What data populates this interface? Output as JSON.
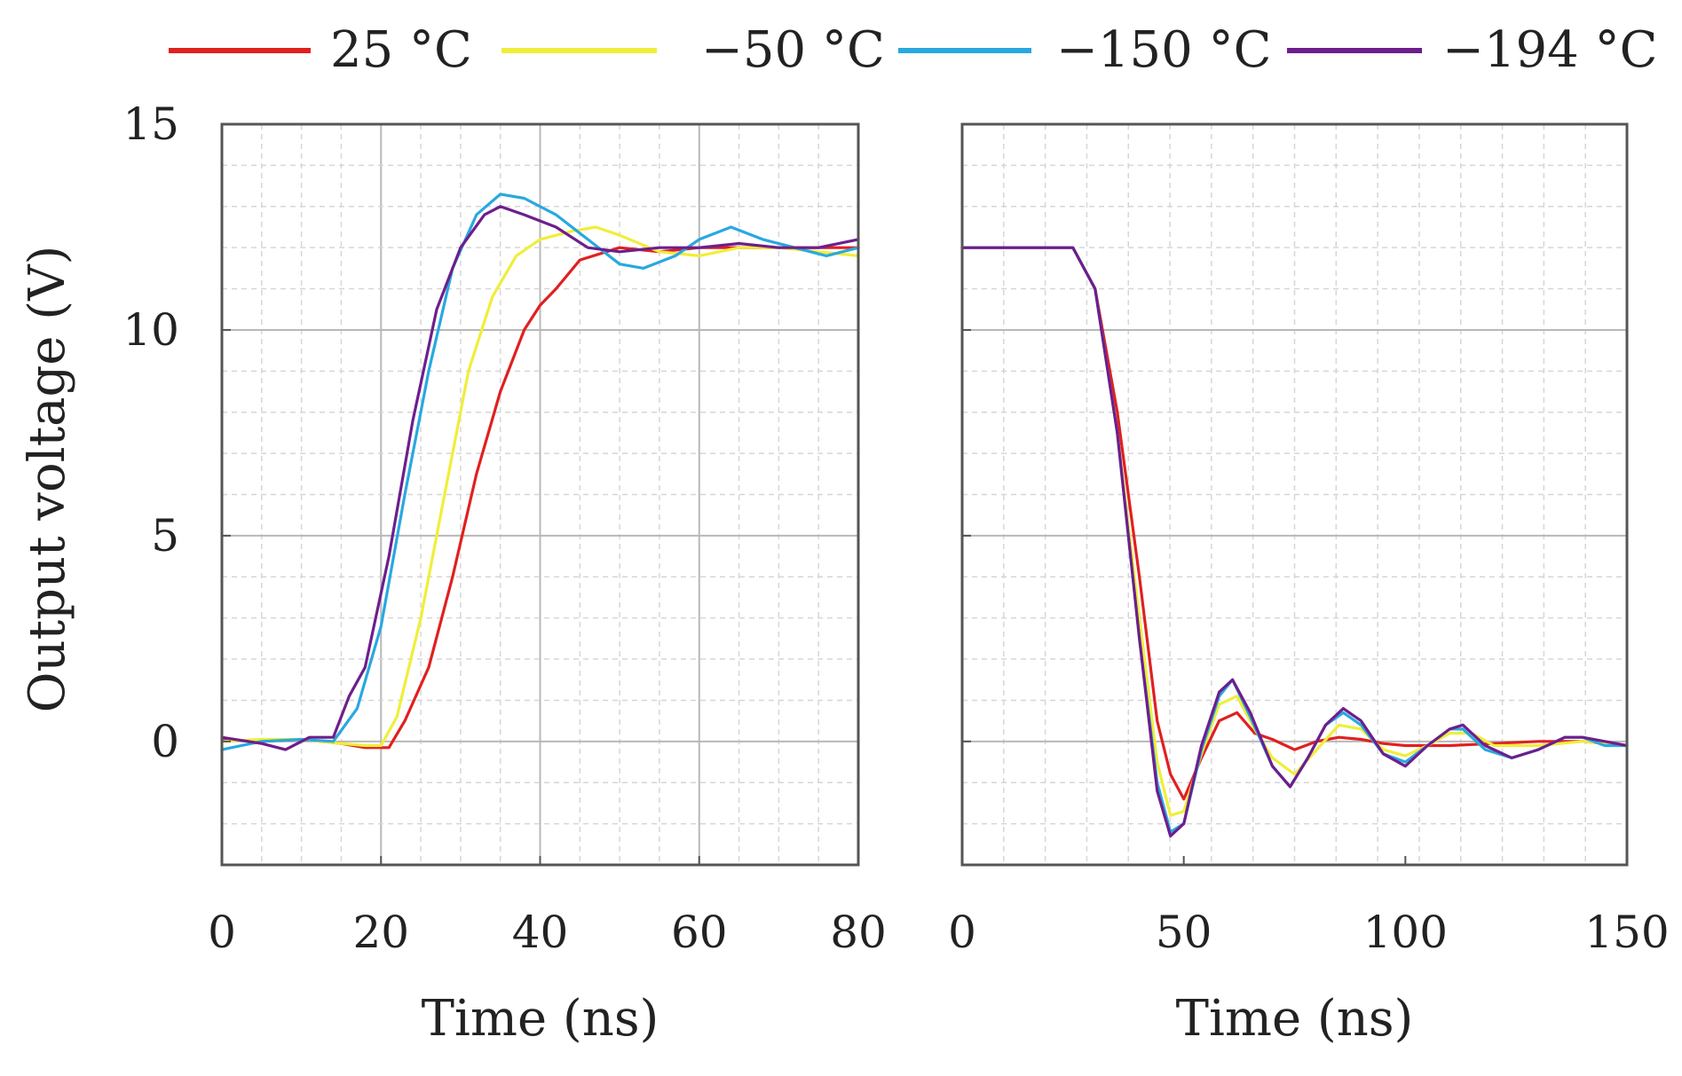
{
  "legend": [
    {
      "label": "25 °C",
      "color": "#e0201f"
    },
    {
      "label": "−50 °C",
      "color": "#f0ee3a"
    },
    {
      "label": "−150 °C",
      "color": "#29a8e0"
    },
    {
      "label": "−194 °C",
      "color": "#6d1e8c"
    }
  ],
  "ylabel": "Output voltage (V)",
  "chart_data": [
    {
      "type": "line",
      "title": "",
      "xlabel": "Time (ns)",
      "ylabel": "Output voltage (V)",
      "xlim": [
        0,
        80
      ],
      "ylim": [
        -3,
        15
      ],
      "xticks": [
        0,
        20,
        40,
        60,
        80
      ],
      "yticks": [
        0,
        5,
        10,
        15
      ],
      "grid": true,
      "series": [
        {
          "name": "25 °C",
          "color": "#e0201f",
          "points": [
            [
              0,
              0.05
            ],
            [
              5,
              0
            ],
            [
              10,
              0.05
            ],
            [
              15,
              -0.05
            ],
            [
              18,
              -0.15
            ],
            [
              21,
              -0.15
            ],
            [
              23,
              0.5
            ],
            [
              26,
              1.8
            ],
            [
              29,
              4
            ],
            [
              32,
              6.5
            ],
            [
              35,
              8.5
            ],
            [
              38,
              10
            ],
            [
              40,
              10.6
            ],
            [
              42,
              11
            ],
            [
              45,
              11.7
            ],
            [
              50,
              12
            ],
            [
              55,
              11.9
            ],
            [
              60,
              12
            ],
            [
              65,
              12
            ],
            [
              70,
              12
            ],
            [
              75,
              12
            ],
            [
              80,
              12
            ]
          ]
        },
        {
          "name": "−50 °C",
          "color": "#f0ee3a",
          "points": [
            [
              0,
              0
            ],
            [
              5,
              0.05
            ],
            [
              10,
              0.05
            ],
            [
              15,
              -0.05
            ],
            [
              18,
              -0.1
            ],
            [
              20,
              -0.1
            ],
            [
              22,
              0.6
            ],
            [
              25,
              3
            ],
            [
              28,
              6
            ],
            [
              31,
              9
            ],
            [
              34,
              10.8
            ],
            [
              37,
              11.8
            ],
            [
              40,
              12.2
            ],
            [
              44,
              12.4
            ],
            [
              47,
              12.5
            ],
            [
              50,
              12.3
            ],
            [
              55,
              11.9
            ],
            [
              60,
              11.8
            ],
            [
              65,
              12
            ],
            [
              70,
              12
            ],
            [
              75,
              11.9
            ],
            [
              80,
              11.8
            ]
          ]
        },
        {
          "name": "−150 °C",
          "color": "#29a8e0",
          "points": [
            [
              0,
              -0.2
            ],
            [
              5,
              0
            ],
            [
              10,
              0.05
            ],
            [
              14,
              0
            ],
            [
              17,
              0.8
            ],
            [
              20,
              2.8
            ],
            [
              23,
              6
            ],
            [
              26,
              9
            ],
            [
              29,
              11.5
            ],
            [
              32,
              12.8
            ],
            [
              35,
              13.3
            ],
            [
              38,
              13.2
            ],
            [
              42,
              12.8
            ],
            [
              46,
              12.2
            ],
            [
              50,
              11.6
            ],
            [
              53,
              11.5
            ],
            [
              57,
              11.8
            ],
            [
              60,
              12.2
            ],
            [
              64,
              12.5
            ],
            [
              68,
              12.2
            ],
            [
              72,
              12
            ],
            [
              76,
              11.8
            ],
            [
              80,
              12
            ]
          ]
        },
        {
          "name": "−194 °C",
          "color": "#6d1e8c",
          "points": [
            [
              0,
              0.1
            ],
            [
              5,
              -0.05
            ],
            [
              8,
              -0.2
            ],
            [
              11,
              0.1
            ],
            [
              14,
              0.1
            ],
            [
              16,
              1.1
            ],
            [
              18,
              1.8
            ],
            [
              21,
              4.5
            ],
            [
              24,
              7.8
            ],
            [
              27,
              10.5
            ],
            [
              30,
              12
            ],
            [
              33,
              12.8
            ],
            [
              35,
              13
            ],
            [
              38,
              12.8
            ],
            [
              42,
              12.5
            ],
            [
              46,
              12
            ],
            [
              50,
              11.9
            ],
            [
              55,
              12
            ],
            [
              60,
              12
            ],
            [
              65,
              12.1
            ],
            [
              70,
              12
            ],
            [
              75,
              12
            ],
            [
              80,
              12.2
            ]
          ]
        }
      ]
    },
    {
      "type": "line",
      "title": "",
      "xlabel": "Time (ns)",
      "ylabel": "",
      "xlim": [
        0,
        150
      ],
      "ylim": [
        -3,
        15
      ],
      "xticks": [
        0,
        50,
        100,
        150
      ],
      "yticks": [
        0,
        5,
        10,
        15
      ],
      "grid": true,
      "series": [
        {
          "name": "25 °C",
          "color": "#e0201f",
          "points": [
            [
              0,
              12
            ],
            [
              10,
              12
            ],
            [
              20,
              12
            ],
            [
              25,
              12
            ],
            [
              30,
              11
            ],
            [
              35,
              8
            ],
            [
              40,
              4
            ],
            [
              44,
              0.5
            ],
            [
              47,
              -0.8
            ],
            [
              50,
              -1.4
            ],
            [
              54,
              -0.4
            ],
            [
              58,
              0.5
            ],
            [
              62,
              0.7
            ],
            [
              66,
              0.2
            ],
            [
              70,
              0.05
            ],
            [
              75,
              -0.2
            ],
            [
              80,
              0
            ],
            [
              85,
              0.1
            ],
            [
              90,
              0.05
            ],
            [
              95,
              -0.05
            ],
            [
              100,
              -0.1
            ],
            [
              110,
              -0.1
            ],
            [
              120,
              -0.05
            ],
            [
              130,
              0
            ],
            [
              140,
              0
            ],
            [
              150,
              -0.1
            ]
          ]
        },
        {
          "name": "−50 °C",
          "color": "#f0ee3a",
          "points": [
            [
              0,
              12
            ],
            [
              10,
              12
            ],
            [
              20,
              12
            ],
            [
              25,
              12
            ],
            [
              30,
              11
            ],
            [
              35,
              7.5
            ],
            [
              40,
              3
            ],
            [
              44,
              -0.5
            ],
            [
              47,
              -1.8
            ],
            [
              50,
              -1.7
            ],
            [
              54,
              -0.3
            ],
            [
              58,
              0.9
            ],
            [
              62,
              1.1
            ],
            [
              66,
              0.3
            ],
            [
              70,
              -0.4
            ],
            [
              75,
              -0.8
            ],
            [
              80,
              -0.2
            ],
            [
              85,
              0.4
            ],
            [
              90,
              0.3
            ],
            [
              95,
              -0.2
            ],
            [
              100,
              -0.35
            ],
            [
              105,
              -0.1
            ],
            [
              110,
              0.2
            ],
            [
              115,
              0.2
            ],
            [
              120,
              -0.1
            ],
            [
              130,
              -0.1
            ],
            [
              140,
              0
            ],
            [
              150,
              -0.1
            ]
          ]
        },
        {
          "name": "−150 °C",
          "color": "#29a8e0",
          "points": [
            [
              0,
              12
            ],
            [
              10,
              12
            ],
            [
              20,
              12
            ],
            [
              25,
              12
            ],
            [
              30,
              11
            ],
            [
              35,
              7.5
            ],
            [
              40,
              2.5
            ],
            [
              44,
              -1
            ],
            [
              47,
              -2.2
            ],
            [
              50,
              -2
            ],
            [
              54,
              -0.2
            ],
            [
              58,
              1.1
            ],
            [
              61,
              1.5
            ],
            [
              65,
              0.6
            ],
            [
              70,
              -0.6
            ],
            [
              74,
              -1.1
            ],
            [
              78,
              -0.4
            ],
            [
              82,
              0.4
            ],
            [
              86,
              0.7
            ],
            [
              90,
              0.4
            ],
            [
              95,
              -0.3
            ],
            [
              100,
              -0.5
            ],
            [
              105,
              -0.1
            ],
            [
              110,
              0.3
            ],
            [
              113,
              0.3
            ],
            [
              118,
              -0.2
            ],
            [
              124,
              -0.4
            ],
            [
              130,
              -0.2
            ],
            [
              136,
              0.1
            ],
            [
              140,
              0.1
            ],
            [
              145,
              -0.1
            ],
            [
              150,
              -0.1
            ]
          ]
        },
        {
          "name": "−194 °C",
          "color": "#6d1e8c",
          "points": [
            [
              0,
              12
            ],
            [
              10,
              12
            ],
            [
              20,
              12
            ],
            [
              25,
              12
            ],
            [
              30,
              11
            ],
            [
              35,
              7.5
            ],
            [
              40,
              2.5
            ],
            [
              44,
              -1.2
            ],
            [
              47,
              -2.3
            ],
            [
              50,
              -2
            ],
            [
              54,
              -0.1
            ],
            [
              58,
              1.2
            ],
            [
              61,
              1.5
            ],
            [
              65,
              0.7
            ],
            [
              70,
              -0.6
            ],
            [
              74,
              -1.1
            ],
            [
              78,
              -0.4
            ],
            [
              82,
              0.4
            ],
            [
              86,
              0.8
            ],
            [
              90,
              0.5
            ],
            [
              95,
              -0.3
            ],
            [
              100,
              -0.6
            ],
            [
              105,
              -0.1
            ],
            [
              110,
              0.3
            ],
            [
              113,
              0.4
            ],
            [
              118,
              -0.1
            ],
            [
              124,
              -0.4
            ],
            [
              130,
              -0.2
            ],
            [
              136,
              0.1
            ],
            [
              140,
              0.1
            ],
            [
              145,
              0
            ],
            [
              150,
              -0.1
            ]
          ]
        }
      ]
    }
  ]
}
